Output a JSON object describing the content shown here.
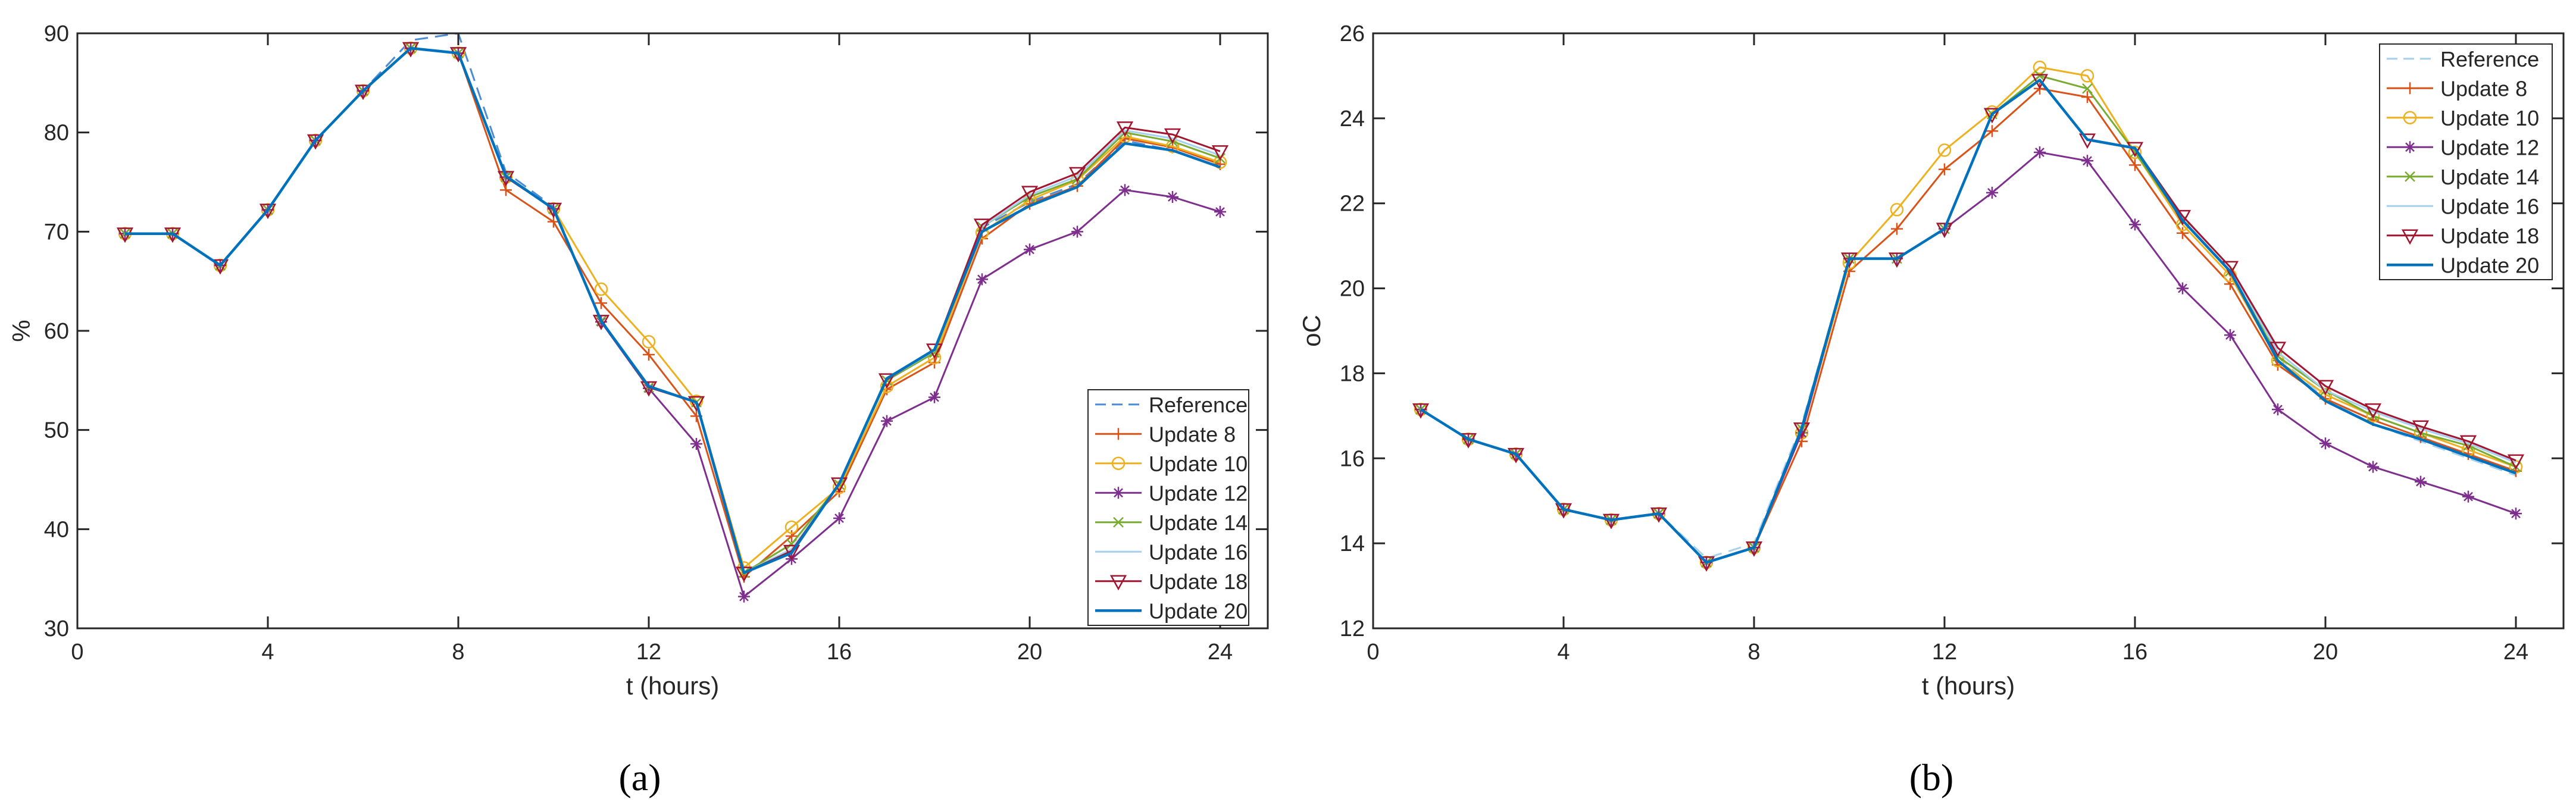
{
  "chart_data": [
    {
      "type": "line",
      "panel_label": "(a)",
      "xlabel": "t (hours)",
      "ylabel": "%",
      "xlim": [
        0,
        25
      ],
      "ylim": [
        30,
        90
      ],
      "xticks": [
        0,
        4,
        8,
        12,
        16,
        20,
        24
      ],
      "yticks": [
        30,
        40,
        50,
        60,
        70,
        80,
        90
      ],
      "legend_position": "bottom-right",
      "x": [
        1,
        2,
        3,
        4,
        5,
        6,
        7,
        8,
        9,
        10,
        11,
        12,
        13,
        14,
        15,
        16,
        17,
        18,
        19,
        20,
        21,
        22,
        23,
        24
      ],
      "series": [
        {
          "name": "Reference",
          "color": "#4C8BD6",
          "style": "dashed",
          "marker": "none",
          "values": [
            69.8,
            69.8,
            66.6,
            72.2,
            79.2,
            84.2,
            89.3,
            90.0,
            76.0,
            72.5,
            61.0,
            54.4,
            52.8,
            35.6,
            37.9,
            44.5,
            55.1,
            58.0,
            70.4,
            73.0,
            74.8,
            79.2,
            78.2,
            76.5
          ]
        },
        {
          "name": "Update 8",
          "color": "#D95319",
          "style": "solid",
          "marker": "plus",
          "values": [
            69.8,
            69.8,
            66.6,
            72.2,
            79.2,
            84.2,
            88.5,
            88.0,
            74.2,
            71.0,
            62.8,
            57.6,
            51.4,
            35.2,
            39.3,
            43.8,
            54.1,
            56.8,
            69.3,
            72.8,
            74.6,
            79.4,
            78.5,
            76.8
          ]
        },
        {
          "name": "Update 10",
          "color": "#EDB120",
          "style": "solid",
          "marker": "circle",
          "values": [
            69.8,
            69.8,
            66.6,
            72.2,
            79.2,
            84.2,
            88.5,
            88.0,
            75.5,
            72.3,
            64.2,
            58.9,
            52.9,
            36.1,
            40.2,
            44.2,
            54.4,
            57.3,
            69.9,
            73.2,
            75.2,
            79.6,
            78.6,
            77.0
          ]
        },
        {
          "name": "Update 12",
          "color": "#7E2F8E",
          "style": "solid",
          "marker": "star",
          "values": [
            69.8,
            69.8,
            66.6,
            72.2,
            79.2,
            84.2,
            88.5,
            88.0,
            75.5,
            72.3,
            60.9,
            54.2,
            48.6,
            33.2,
            37.0,
            41.1,
            50.9,
            53.3,
            65.2,
            68.2,
            70.0,
            74.2,
            73.5,
            72.0
          ]
        },
        {
          "name": "Update 14",
          "color": "#77AC30",
          "style": "solid",
          "marker": "x",
          "values": [
            69.8,
            69.8,
            66.6,
            72.2,
            79.2,
            84.2,
            88.5,
            88.0,
            75.5,
            72.3,
            61.0,
            54.3,
            52.8,
            35.6,
            38.5,
            44.5,
            55.0,
            57.8,
            70.5,
            73.5,
            75.3,
            80.0,
            79.1,
            77.4
          ]
        },
        {
          "name": "Update 16",
          "color": "#A6D0F0",
          "style": "solid",
          "marker": "none",
          "values": [
            69.8,
            69.8,
            66.6,
            72.2,
            79.2,
            84.2,
            88.5,
            88.0,
            75.5,
            72.3,
            61.0,
            54.3,
            52.8,
            35.6,
            38.0,
            44.5,
            55.1,
            58.0,
            70.5,
            73.7,
            75.6,
            80.2,
            79.4,
            77.7
          ]
        },
        {
          "name": "Update 18",
          "color": "#A2142F",
          "style": "solid",
          "marker": "triangle-down",
          "values": [
            69.8,
            69.8,
            66.6,
            72.2,
            79.2,
            84.2,
            88.5,
            88.0,
            75.5,
            72.3,
            61.0,
            54.3,
            52.8,
            35.6,
            37.8,
            44.6,
            55.1,
            58.1,
            70.7,
            74.0,
            75.9,
            80.5,
            79.8,
            78.1
          ]
        },
        {
          "name": "Update 20",
          "color": "#0072BD",
          "style": "solid",
          "marker": "none",
          "values": [
            69.8,
            69.8,
            66.6,
            72.2,
            79.2,
            84.2,
            88.5,
            88.0,
            75.6,
            72.3,
            61.0,
            54.4,
            52.8,
            35.6,
            37.6,
            44.6,
            55.2,
            58.1,
            70.0,
            72.6,
            74.5,
            78.9,
            78.2,
            76.5
          ]
        }
      ]
    },
    {
      "type": "line",
      "panel_label": "(b)",
      "xlabel": "t (hours)",
      "ylabel": "oC",
      "xlim": [
        0,
        25
      ],
      "ylim": [
        12,
        26
      ],
      "xticks": [
        0,
        4,
        8,
        12,
        16,
        20,
        24
      ],
      "yticks": [
        12,
        14,
        16,
        18,
        20,
        22,
        24,
        26
      ],
      "legend_position": "top-right",
      "x": [
        1,
        2,
        3,
        4,
        5,
        6,
        7,
        8,
        9,
        10,
        11,
        12,
        13,
        14,
        15,
        16,
        17,
        18,
        19,
        20,
        21,
        22,
        23,
        24
      ],
      "series": [
        {
          "name": "Reference",
          "color": "#A6D0F0",
          "style": "dashed",
          "marker": "none",
          "values": [
            17.15,
            16.45,
            16.1,
            14.8,
            14.55,
            14.7,
            13.65,
            14.0,
            16.8,
            20.7,
            20.7,
            21.4,
            24.1,
            24.9,
            23.5,
            23.3,
            21.7,
            20.5,
            18.4,
            17.4,
            16.8,
            16.4,
            16.0,
            15.6
          ]
        },
        {
          "name": "Update 8",
          "color": "#D95319",
          "style": "solid",
          "marker": "plus",
          "values": [
            17.15,
            16.45,
            16.1,
            14.8,
            14.55,
            14.7,
            13.55,
            13.9,
            16.4,
            20.4,
            21.4,
            22.8,
            23.7,
            24.7,
            24.5,
            22.9,
            21.3,
            20.1,
            18.2,
            17.4,
            16.9,
            16.5,
            16.1,
            15.7
          ]
        },
        {
          "name": "Update 10",
          "color": "#EDB120",
          "style": "solid",
          "marker": "circle",
          "values": [
            17.15,
            16.45,
            16.1,
            14.8,
            14.55,
            14.7,
            13.55,
            13.9,
            16.6,
            20.6,
            21.85,
            23.25,
            24.15,
            25.2,
            25.0,
            23.2,
            21.5,
            20.3,
            18.3,
            17.5,
            17.0,
            16.6,
            16.2,
            15.8
          ]
        },
        {
          "name": "Update 12",
          "color": "#7E2F8E",
          "style": "solid",
          "marker": "star",
          "values": [
            17.15,
            16.45,
            16.1,
            14.8,
            14.55,
            14.7,
            13.55,
            13.9,
            16.6,
            20.7,
            20.7,
            21.4,
            22.25,
            23.2,
            23.0,
            21.5,
            20.0,
            18.9,
            17.15,
            16.35,
            15.8,
            15.45,
            15.1,
            14.7
          ]
        },
        {
          "name": "Update 14",
          "color": "#77AC30",
          "style": "solid",
          "marker": "x",
          "values": [
            17.15,
            16.45,
            16.1,
            14.8,
            14.55,
            14.7,
            13.55,
            13.9,
            16.7,
            20.7,
            20.7,
            21.4,
            24.1,
            25.0,
            24.7,
            23.2,
            21.6,
            20.4,
            18.4,
            17.6,
            17.0,
            16.6,
            16.3,
            15.8
          ]
        },
        {
          "name": "Update 16",
          "color": "#A6D0F0",
          "style": "solid",
          "marker": "none",
          "values": [
            17.15,
            16.45,
            16.1,
            14.8,
            14.55,
            14.7,
            13.55,
            13.9,
            16.7,
            20.7,
            20.7,
            21.4,
            24.1,
            24.9,
            23.5,
            23.3,
            21.7,
            20.5,
            18.5,
            17.6,
            17.1,
            16.7,
            16.35,
            15.9
          ]
        },
        {
          "name": "Update 18",
          "color": "#A2142F",
          "style": "solid",
          "marker": "triangle-down",
          "values": [
            17.15,
            16.45,
            16.1,
            14.8,
            14.55,
            14.7,
            13.55,
            13.9,
            16.7,
            20.7,
            20.7,
            21.4,
            24.1,
            24.9,
            23.5,
            23.3,
            21.7,
            20.5,
            18.6,
            17.7,
            17.15,
            16.75,
            16.4,
            15.95
          ]
        },
        {
          "name": "Update 20",
          "color": "#0072BD",
          "style": "solid",
          "marker": "none",
          "values": [
            17.15,
            16.45,
            16.1,
            14.8,
            14.55,
            14.7,
            13.55,
            13.9,
            16.7,
            20.7,
            20.7,
            21.4,
            24.1,
            24.9,
            23.5,
            23.3,
            21.6,
            20.4,
            18.3,
            17.35,
            16.8,
            16.45,
            16.05,
            15.65
          ]
        }
      ]
    }
  ]
}
